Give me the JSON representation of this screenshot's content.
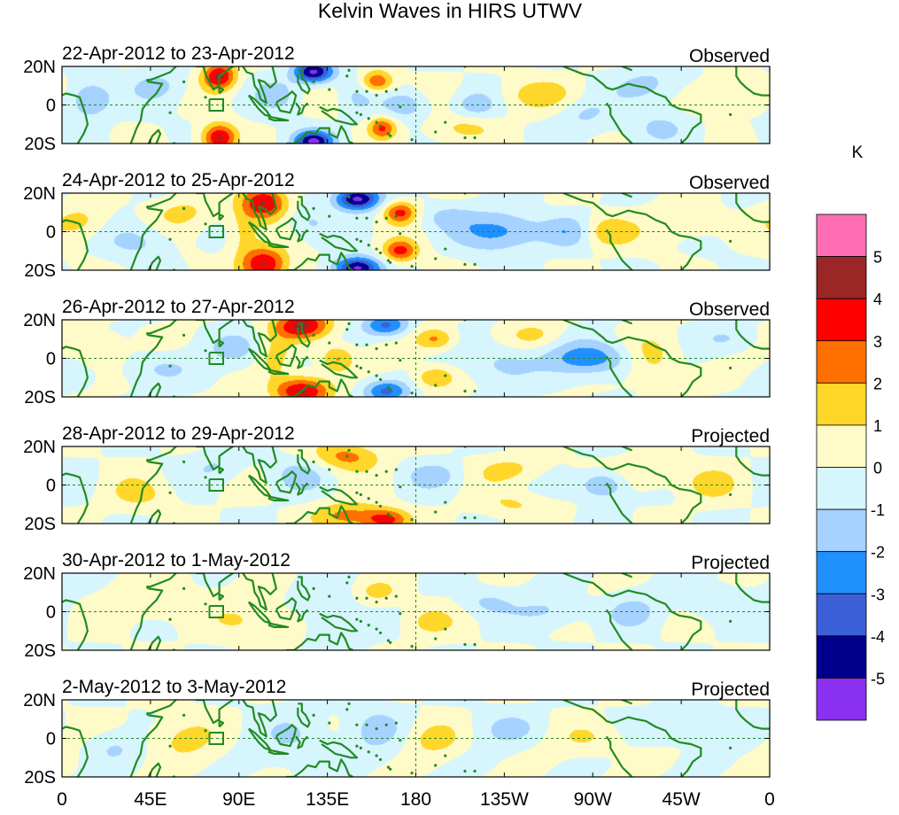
{
  "chart_data": {
    "type": "heatmap",
    "title": "Kelvin Waves in HIRS UTWV",
    "colorbar": {
      "unit": "K",
      "levels": [
        "5",
        "4",
        "3",
        "2",
        "1",
        "0",
        "-1",
        "-2",
        "-3",
        "-4",
        "-5"
      ],
      "colors": [
        "#ff6eb4",
        "#9b2626",
        "#ff0000",
        "#ff7000",
        "#ffd62a",
        "#fffbc8",
        "#d6f5fd",
        "#a6d2ff",
        "#2090ff",
        "#3c60d8",
        "#00008c",
        "#8a30f0"
      ]
    },
    "x_ticks": [
      "0",
      "45E",
      "90E",
      "135E",
      "180",
      "135W",
      "90W",
      "45W",
      "0"
    ],
    "x_tick_lons": [
      0,
      45,
      90,
      135,
      180,
      225,
      270,
      315,
      360
    ],
    "y_ticks": [
      "20N",
      "0",
      "20S"
    ],
    "y_tick_lats": [
      20,
      0,
      -20
    ],
    "panels": [
      {
        "date": "22-Apr-2012 to 23-Apr-2012",
        "status": "Observed",
        "blobs": [
          [
            80,
            15,
            6,
            5,
            4.2
          ],
          [
            80,
            -17,
            6,
            5,
            4.2
          ],
          [
            128,
            17,
            7,
            4,
            -5.2
          ],
          [
            128,
            -19,
            7,
            4,
            -5.2
          ],
          [
            160,
            12,
            6,
            4,
            3.2
          ],
          [
            163,
            -12,
            5,
            4,
            3.1
          ],
          [
            14,
            3,
            8,
            7,
            -2.3
          ],
          [
            175,
            0,
            8,
            5,
            -1.6
          ],
          [
            210,
            0,
            8,
            5,
            -1.6
          ],
          [
            240,
            5,
            14,
            6,
            1.4
          ],
          [
            205,
            -12,
            12,
            5,
            1.2
          ],
          [
            300,
            10,
            12,
            7,
            -1.4
          ],
          [
            305,
            -12,
            10,
            6,
            -1.2
          ],
          [
            340,
            5,
            12,
            6,
            1.2
          ],
          [
            110,
            5,
            8,
            6,
            -1.3
          ],
          [
            50,
            10,
            10,
            6,
            -1.1
          ],
          [
            265,
            -5,
            10,
            6,
            -1.2
          ],
          [
            150,
            5,
            6,
            8,
            -1.0
          ]
        ]
      },
      {
        "date": "24-Apr-2012 to 25-Apr-2012",
        "status": "Observed",
        "blobs": [
          [
            103,
            15,
            8,
            6,
            4.2
          ],
          [
            103,
            -17,
            8,
            6,
            4.2
          ],
          [
            150,
            17,
            8,
            4,
            -5.3
          ],
          [
            150,
            -19,
            8,
            4,
            -5.3
          ],
          [
            172,
            10,
            6,
            4,
            3.3
          ],
          [
            172,
            -10,
            6,
            4,
            3.3
          ],
          [
            92,
            0,
            6,
            10,
            1.4
          ],
          [
            225,
            0,
            16,
            7,
            -2.4
          ],
          [
            260,
            0,
            10,
            6,
            -1.8
          ],
          [
            275,
            0,
            10,
            6,
            2.4
          ],
          [
            10,
            5,
            10,
            6,
            1.2
          ],
          [
            320,
            5,
            12,
            6,
            1.2
          ],
          [
            195,
            8,
            10,
            5,
            -1.2
          ],
          [
            125,
            5,
            8,
            6,
            -1.2
          ],
          [
            40,
            -5,
            12,
            6,
            -1.2
          ],
          [
            60,
            10,
            12,
            6,
            1.1
          ]
        ]
      },
      {
        "date": "26-Apr-2012 to 27-Apr-2012",
        "status": "Observed",
        "blobs": [
          [
            122,
            17,
            10,
            5,
            4.2
          ],
          [
            122,
            -17,
            10,
            5,
            4.2
          ],
          [
            165,
            17,
            8,
            4,
            -3.2
          ],
          [
            165,
            -17,
            8,
            4,
            -3.2
          ],
          [
            140,
            0,
            6,
            5,
            2.3
          ],
          [
            190,
            10,
            7,
            4,
            2.2
          ],
          [
            190,
            -10,
            7,
            4,
            2.2
          ],
          [
            270,
            0,
            16,
            6,
            -2.6
          ],
          [
            300,
            0,
            10,
            8,
            1.6
          ],
          [
            20,
            5,
            8,
            6,
            1.3
          ],
          [
            90,
            5,
            10,
            6,
            -1.3
          ],
          [
            225,
            -3,
            12,
            7,
            -1.4
          ],
          [
            50,
            -5,
            12,
            6,
            -1.2
          ],
          [
            240,
            12,
            10,
            5,
            1.1
          ],
          [
            340,
            10,
            10,
            5,
            -1.1
          ],
          [
            108,
            0,
            6,
            8,
            1.2
          ]
        ]
      },
      {
        "date": "28-Apr-2012 to 29-Apr-2012",
        "status": "Projected",
        "blobs": [
          [
            145,
            15,
            12,
            5,
            2.3
          ],
          [
            145,
            -16,
            12,
            5,
            2.3
          ],
          [
            165,
            -18,
            8,
            4,
            3.2
          ],
          [
            190,
            5,
            10,
            5,
            -1.2
          ],
          [
            230,
            8,
            12,
            5,
            1.3
          ],
          [
            275,
            0,
            8,
            5,
            -2.6
          ],
          [
            300,
            5,
            12,
            6,
            1.1
          ],
          [
            230,
            -10,
            12,
            5,
            1.1
          ],
          [
            330,
            0,
            10,
            6,
            1.1
          ],
          [
            120,
            5,
            10,
            6,
            -1.2
          ],
          [
            40,
            -5,
            12,
            6,
            1.1
          ],
          [
            80,
            10,
            10,
            6,
            -1.0
          ]
        ]
      },
      {
        "date": "30-Apr-2012 to 1-May-2012",
        "status": "Projected",
        "blobs": [
          [
            140,
            0,
            10,
            12,
            -1.3
          ],
          [
            160,
            10,
            10,
            5,
            1.3
          ],
          [
            185,
            -5,
            10,
            6,
            1.2
          ],
          [
            215,
            5,
            10,
            5,
            -1.2
          ],
          [
            250,
            0,
            12,
            6,
            -1.2
          ],
          [
            290,
            0,
            10,
            6,
            -1.1
          ],
          [
            50,
            5,
            14,
            8,
            1.1
          ],
          [
            100,
            -5,
            14,
            8,
            1.1
          ],
          [
            330,
            5,
            12,
            6,
            -1.1
          ]
        ]
      },
      {
        "date": "2-May-2012 to 3-May-2012",
        "status": "Projected",
        "blobs": [
          [
            160,
            5,
            10,
            8,
            -1.2
          ],
          [
            190,
            0,
            10,
            6,
            1.2
          ],
          [
            230,
            5,
            12,
            6,
            -1.1
          ],
          [
            270,
            0,
            12,
            6,
            1.1
          ],
          [
            310,
            5,
            12,
            6,
            -1.1
          ],
          [
            60,
            0,
            14,
            8,
            1.1
          ],
          [
            120,
            0,
            12,
            10,
            -1.1
          ],
          [
            25,
            -5,
            10,
            6,
            -1.0
          ]
        ]
      }
    ]
  },
  "map_overlay": {
    "land_color": "#228b22",
    "box_label": "",
    "dashed_lines": [
      "equator",
      "dateline"
    ]
  }
}
